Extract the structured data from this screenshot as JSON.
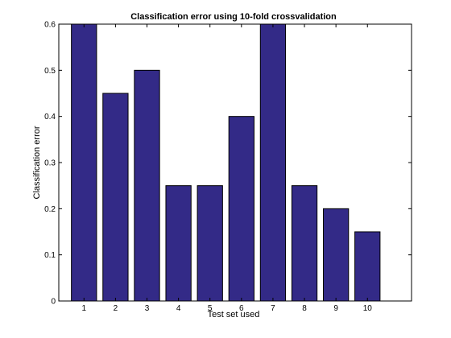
{
  "chart_data": {
    "type": "bar",
    "title": "Classification error using 10-fold crossvalidation",
    "xlabel": "Test set used",
    "ylabel": "Classification error",
    "categories": [
      "1",
      "2",
      "3",
      "4",
      "5",
      "6",
      "7",
      "8",
      "9",
      "10"
    ],
    "values": [
      0.6,
      0.45,
      0.5,
      0.25,
      0.25,
      0.4,
      0.6,
      0.25,
      0.2,
      0.15
    ],
    "xlim": [
      0.2,
      11.4
    ],
    "ylim": [
      0,
      0.6
    ],
    "yticks": [
      0,
      0.1,
      0.2,
      0.3,
      0.4,
      0.5,
      0.6
    ],
    "ytick_labels": [
      "0",
      "0.1",
      "0.2",
      "0.3",
      "0.4",
      "0.5",
      "0.6"
    ],
    "bar_color": "#332a87",
    "grid": false,
    "legend": "none"
  }
}
